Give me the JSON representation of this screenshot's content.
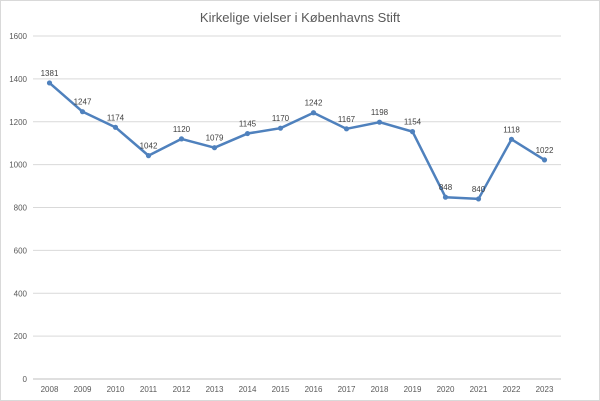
{
  "chart_data": {
    "type": "line",
    "title": "Kirkelige vielser i Københavns Stift",
    "xlabel": "",
    "ylabel": "",
    "categories": [
      "2008",
      "2009",
      "2010",
      "2011",
      "2012",
      "2013",
      "2014",
      "2015",
      "2016",
      "2017",
      "2018",
      "2019",
      "2020",
      "2021",
      "2022",
      "2023"
    ],
    "series": [
      {
        "values": [
          1381,
          1247,
          1174,
          1042,
          1120,
          1079,
          1145,
          1170,
          1242,
          1167,
          1198,
          1154,
          848,
          840,
          1118,
          1022
        ],
        "color": "#4f81bd"
      }
    ],
    "ylim": [
      0,
      1600
    ],
    "yticks": [
      0,
      200,
      400,
      600,
      800,
      1000,
      1200,
      1400,
      1600
    ],
    "grid": true,
    "data_labels": true,
    "legend": "none"
  }
}
